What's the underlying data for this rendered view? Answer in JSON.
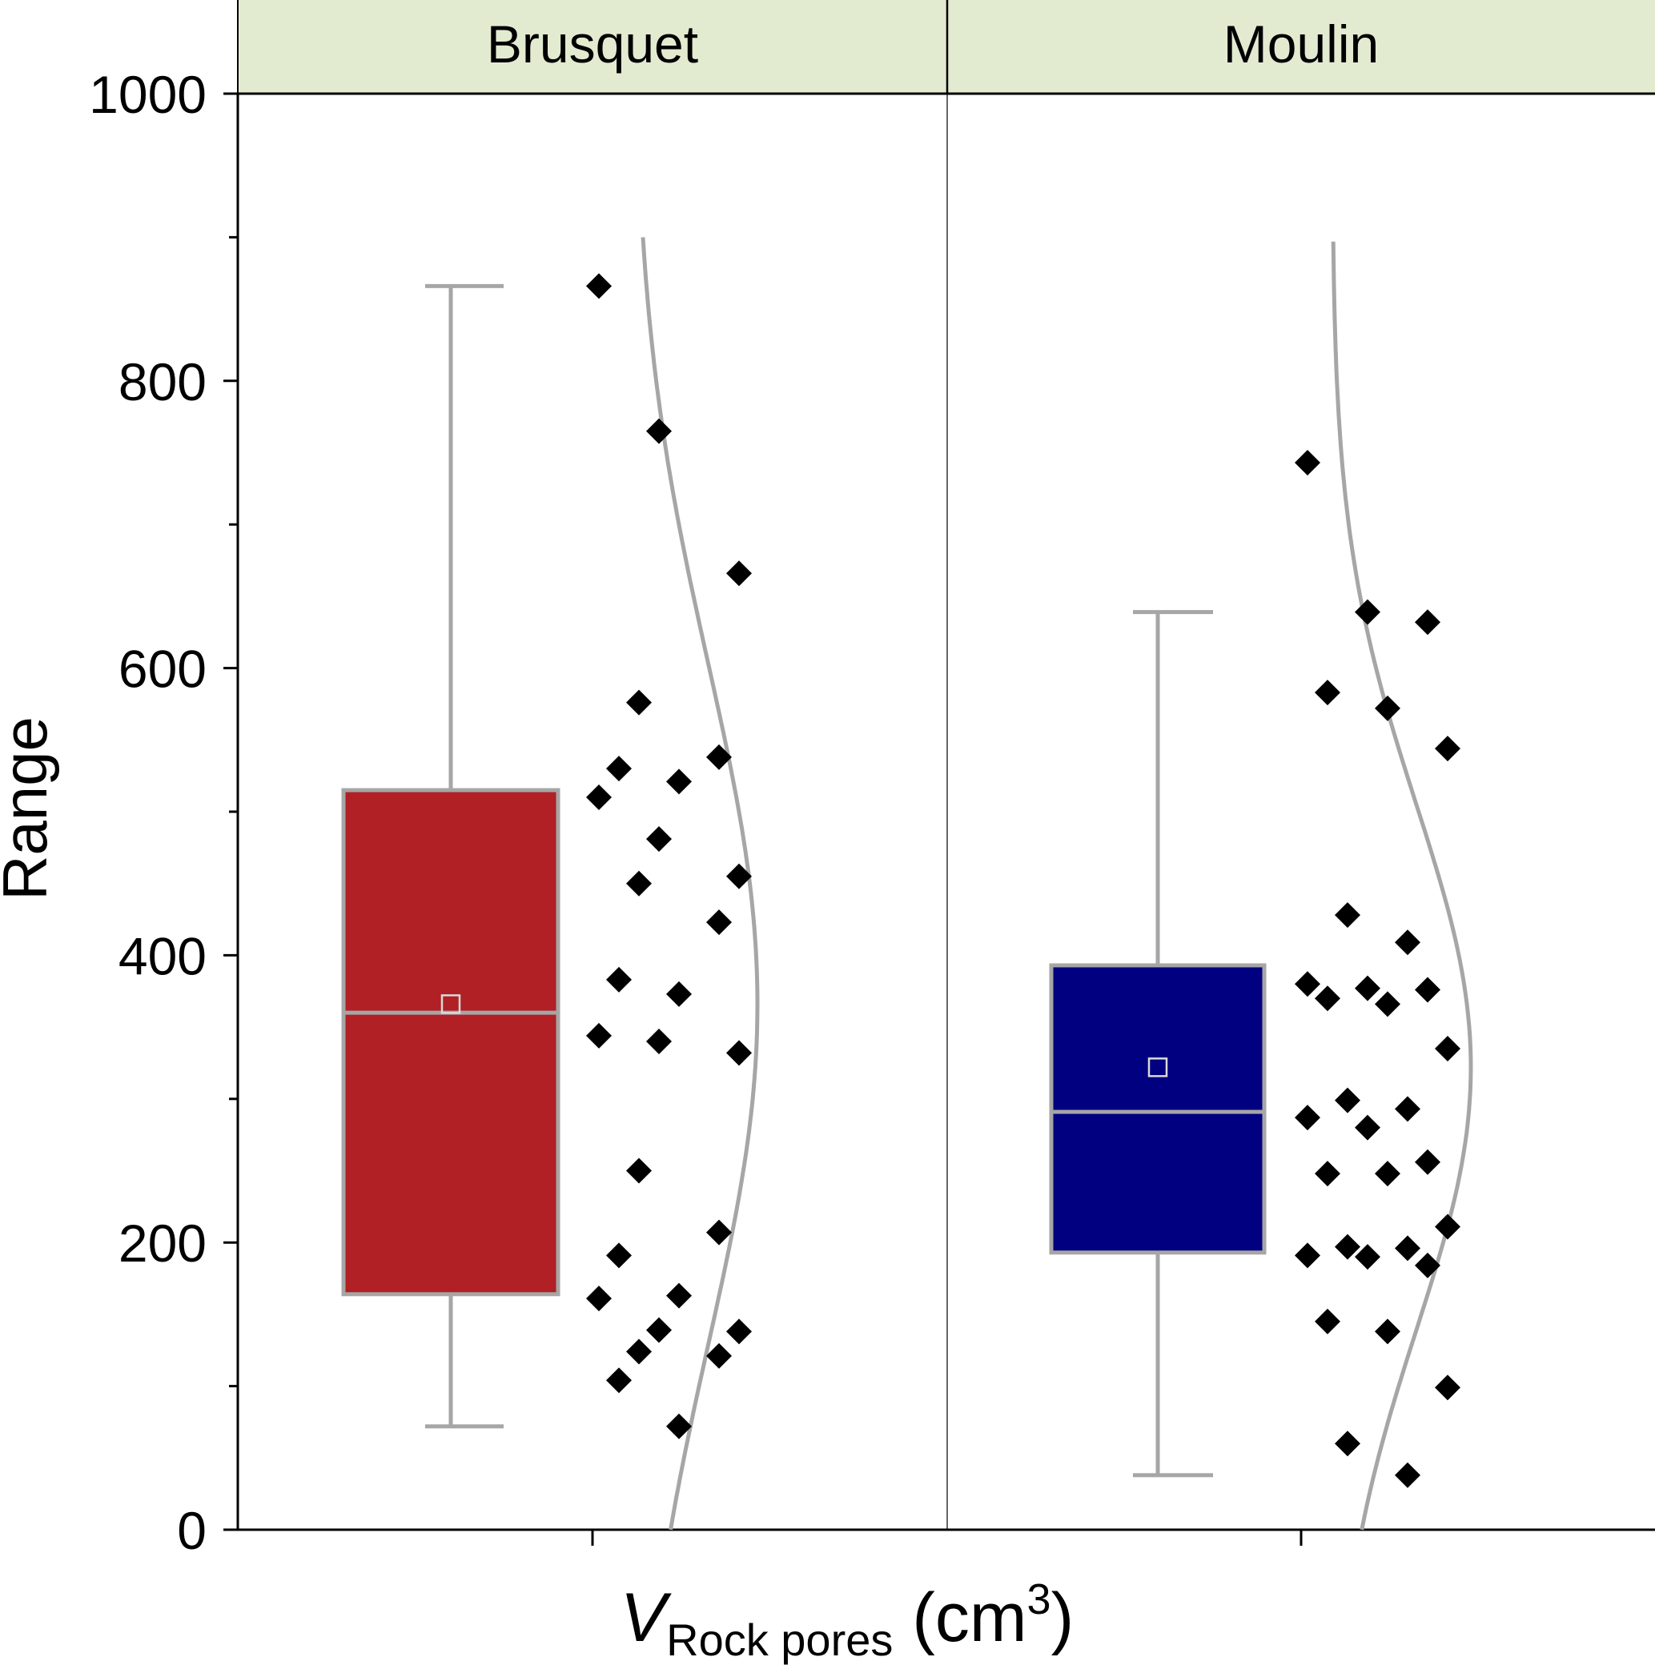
{
  "chart_data": {
    "type": "box",
    "ylabel": "Range",
    "xlabel_main": "V",
    "xlabel_sub": "Rock pores",
    "xlabel_unit": " (cm",
    "xlabel_unit_sup": "3",
    "xlabel_unit_close": ")",
    "ylim": [
      0,
      1000
    ],
    "yticks": [
      0,
      200,
      400,
      600,
      800,
      1000
    ],
    "ytick_labels": [
      "0",
      "200",
      "400",
      "600",
      "800",
      "1000"
    ],
    "y_minor_ticks": [
      100,
      300,
      500,
      700,
      900
    ],
    "grid": false,
    "panels": [
      {
        "name": "Brusquet",
        "box_color": "#B02024",
        "whisker_low": 72,
        "q1": 164,
        "median": 360,
        "q3": 515,
        "whisker_high": 866,
        "mean": 366,
        "points": [
          866,
          765,
          666,
          576,
          538,
          530,
          521,
          510,
          481,
          455,
          450,
          423,
          383,
          373,
          344,
          340,
          332,
          250,
          207,
          191,
          163,
          161,
          139,
          138,
          124,
          121,
          104,
          72
        ],
        "normal_curve": {
          "mean": 366,
          "sd": 236,
          "y_range": [
            0,
            900
          ]
        }
      },
      {
        "name": "Moulin",
        "box_color": "#000080",
        "whisker_low": 38,
        "q1": 193,
        "median": 291,
        "q3": 393,
        "whisker_high": 639,
        "mean": 322,
        "points": [
          743,
          639,
          632,
          583,
          572,
          544,
          428,
          409,
          380,
          377,
          376,
          370,
          366,
          335,
          299,
          293,
          287,
          280,
          256,
          248,
          248,
          211,
          197,
          196,
          191,
          190,
          184,
          145,
          138,
          99,
          60,
          38
        ],
        "normal_curve": {
          "mean": 322,
          "sd": 183,
          "y_range": [
            0,
            897
          ]
        }
      }
    ]
  }
}
